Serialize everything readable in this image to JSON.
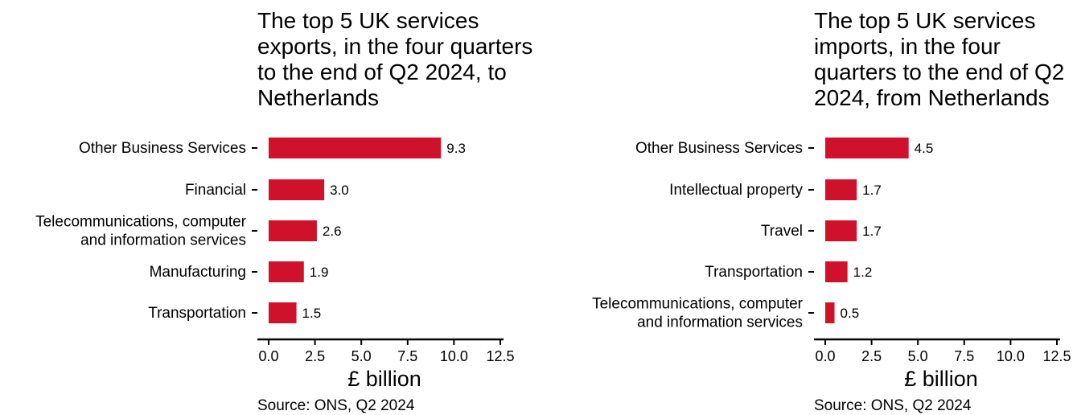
{
  "chart_data": [
    {
      "type": "bar",
      "orientation": "horizontal",
      "title": "The top 5 UK services exports, in the four quarters to the end of Q2 2024, to Netherlands",
      "categories": [
        "Other Business Services",
        "Financial",
        "Telecommunications, computer and information services",
        "Manufacturing",
        "Transportation"
      ],
      "category_lines": [
        [
          "Other Business Services"
        ],
        [
          "Financial"
        ],
        [
          "Telecommunications, computer",
          "and information services"
        ],
        [
          "Manufacturing"
        ],
        [
          "Transportation"
        ]
      ],
      "values": [
        9.3,
        3.0,
        2.6,
        1.9,
        1.5
      ],
      "value_labels": [
        "9.3",
        "3.0",
        "2.6",
        "1.9",
        "1.5"
      ],
      "xlabel": "£ billion",
      "ylabel": "",
      "xlim": [
        0,
        12.5
      ],
      "xticks": [
        0,
        2.5,
        5,
        7.5,
        10,
        12.5
      ],
      "xtick_labels": [
        "0.0",
        "2.5",
        "5.0",
        "7.5",
        "10.0",
        "12.5"
      ],
      "grid": false,
      "source": "Source: ONS, Q2 2024",
      "bar_color": "#d0112b"
    },
    {
      "type": "bar",
      "orientation": "horizontal",
      "title": "The top 5 UK services imports, in the four quarters to the end of Q2 2024, from Netherlands",
      "categories": [
        "Other Business Services",
        "Intellectual property",
        "Travel",
        "Transportation",
        "Telecommunications, computer and information services"
      ],
      "category_lines": [
        [
          "Other Business Services"
        ],
        [
          "Intellectual property"
        ],
        [
          "Travel"
        ],
        [
          "Transportation"
        ],
        [
          "Telecommunications, computer",
          "and information services"
        ]
      ],
      "values": [
        4.5,
        1.7,
        1.7,
        1.2,
        0.5
      ],
      "value_labels": [
        "4.5",
        "1.7",
        "1.7",
        "1.2",
        "0.5"
      ],
      "xlabel": "£ billion",
      "ylabel": "",
      "xlim": [
        0,
        12.5
      ],
      "xticks": [
        0,
        2.5,
        5,
        7.5,
        10,
        12.5
      ],
      "xtick_labels": [
        "0.0",
        "2.5",
        "5.0",
        "7.5",
        "10.0",
        "12.5"
      ],
      "grid": false,
      "source": "Source: ONS, Q2 2024",
      "bar_color": "#d0112b"
    }
  ]
}
